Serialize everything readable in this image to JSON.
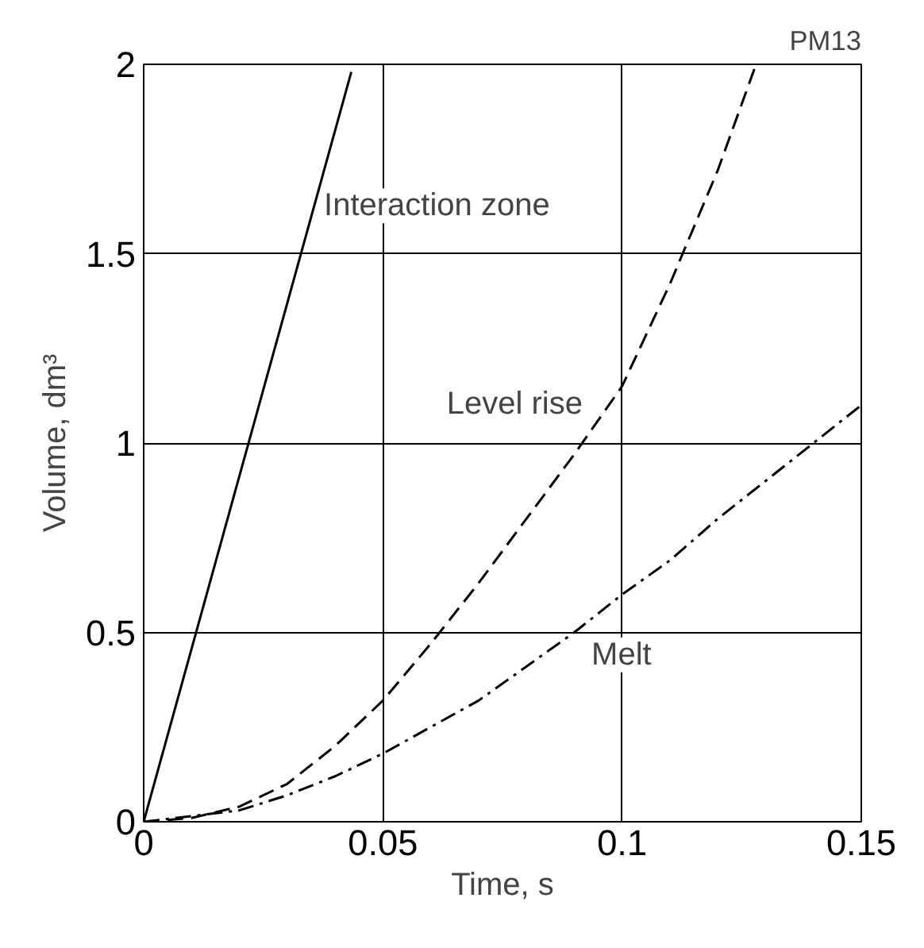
{
  "chart_data": {
    "type": "line",
    "xlabel": "Time, s",
    "ylabel": "Volume, dm³",
    "xlim": [
      0,
      0.15
    ],
    "ylim": [
      0,
      2
    ],
    "xticks": [
      0,
      0.05,
      0.1,
      0.15
    ],
    "yticks": [
      0,
      0.5,
      1,
      1.5,
      2
    ],
    "grid": true,
    "legend": false,
    "marker": "none",
    "series": [
      {
        "name": "Interaction zone",
        "color": "#000000",
        "line_style": "solid",
        "x": [
          0,
          0.0434
        ],
        "values": [
          0,
          1.98
        ]
      },
      {
        "name": "Level rise",
        "color": "#000000",
        "line_style": "dashed",
        "x": [
          0,
          0.01,
          0.02,
          0.03,
          0.04,
          0.05,
          0.06,
          0.07,
          0.08,
          0.09,
          0.1,
          0.11,
          0.12,
          0.128
        ],
        "values": [
          0,
          0.01,
          0.04,
          0.1,
          0.2,
          0.32,
          0.47,
          0.63,
          0.8,
          0.97,
          1.15,
          1.42,
          1.72,
          2.0
        ]
      },
      {
        "name": "Melt",
        "color": "#000000",
        "line_style": "dashdot",
        "x": [
          0,
          0.02,
          0.03,
          0.04,
          0.05,
          0.06,
          0.07,
          0.08,
          0.09,
          0.1,
          0.11,
          0.12,
          0.13,
          0.14,
          0.15
        ],
        "values": [
          0,
          0.03,
          0.07,
          0.12,
          0.18,
          0.25,
          0.32,
          0.41,
          0.5,
          0.6,
          0.69,
          0.8,
          0.9,
          1.0,
          1.1
        ]
      }
    ],
    "annotations": [
      "PM13"
    ]
  }
}
